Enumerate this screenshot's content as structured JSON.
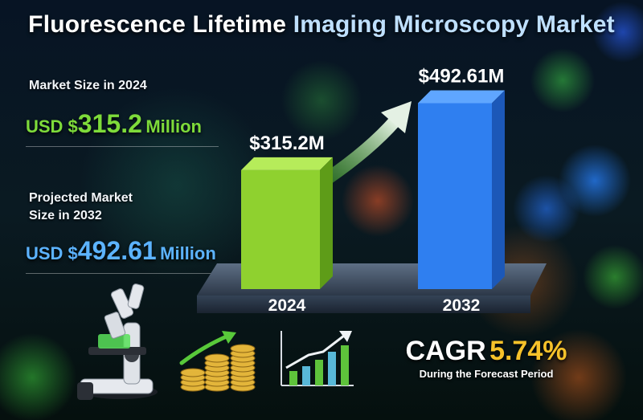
{
  "title": {
    "part1": "Fluorescence Lifetime",
    "part2": "Imaging Microscopy Market"
  },
  "left_panel": {
    "size_2024_label": "Market Size in 2024",
    "size_2024_currency": "USD $",
    "size_2024_value": "315.2",
    "size_2024_unit": "Million",
    "projected_label_line1": "Projected Market",
    "projected_label_line2": "Size in 2032",
    "size_2032_currency": "USD $",
    "size_2032_value": "492.61",
    "size_2032_unit": "Million"
  },
  "cagr": {
    "label": "CAGR",
    "value": "5.74%",
    "subtitle": "During the Forecast Period"
  },
  "icons": [
    "microscope-icon",
    "coin-stacks-icon",
    "growth-arrow-icon",
    "bar-chart-icon"
  ],
  "colors": {
    "bar_2024": "#8fd12f",
    "bar_2032": "#2f7ff0",
    "accent_green": "#7edb3a",
    "accent_blue": "#5cb3ff",
    "accent_gold": "#f6c22a"
  },
  "chart_data": {
    "type": "bar",
    "categories": [
      "2024",
      "2032"
    ],
    "values": [
      315.2,
      492.61
    ],
    "data_labels": [
      "$315.2M",
      "$492.61M"
    ],
    "title": "",
    "xlabel": "",
    "ylabel": "",
    "ylim": [
      0,
      500
    ],
    "grid": false,
    "legend": "none"
  }
}
